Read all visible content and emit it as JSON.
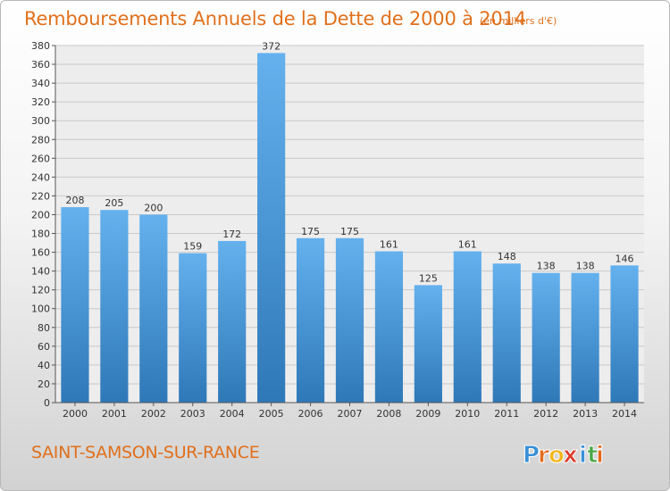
{
  "title": "Remboursements Annuels de la Dette de 2000 à 2014",
  "subtitle": "(en milliers d'€)",
  "commune": "SAINT-SAMSON-SUR-RANCE",
  "logo": {
    "text": "Proxiti",
    "letters": [
      "P",
      "r",
      "o",
      "x",
      "i",
      "t",
      "i"
    ],
    "letter_colors": [
      "#3a8fd6",
      "#e36a1c",
      "#f2b61c",
      "#e03a2a",
      "#3a8fd6",
      "#49a845",
      "#e36a1c"
    ]
  },
  "colors": {
    "bar_top": "#64b1ee",
    "bar_bottom": "#2f78b8",
    "title": "#e0701c",
    "grid": "#c9c9c9"
  },
  "chart_data": {
    "type": "bar",
    "categories": [
      "2000",
      "2001",
      "2002",
      "2003",
      "2004",
      "2005",
      "2006",
      "2007",
      "2008",
      "2009",
      "2010",
      "2011",
      "2012",
      "2013",
      "2014"
    ],
    "values": [
      208,
      205,
      200,
      159,
      172,
      372,
      175,
      175,
      161,
      125,
      161,
      148,
      138,
      138,
      146
    ],
    "ylim": [
      0,
      380
    ],
    "ytick_step": 20,
    "grid": true,
    "xlabel": "",
    "ylabel": ""
  }
}
